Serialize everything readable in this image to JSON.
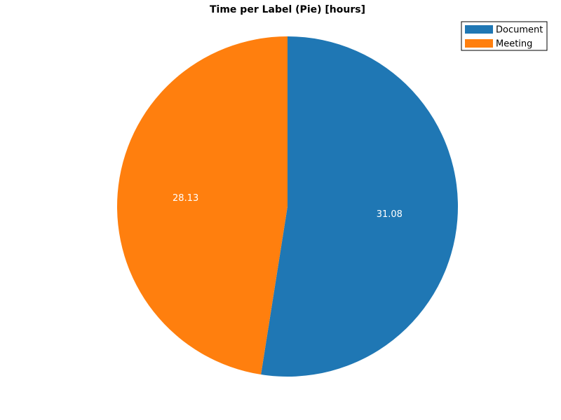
{
  "chart_data": {
    "type": "pie",
    "title": "Time per Label (Pie) [hours]",
    "slices": [
      {
        "label": "Document",
        "value": 31.08,
        "value_label": "31.08",
        "color": "#1f77b4"
      },
      {
        "label": "Meeting",
        "value": 28.13,
        "value_label": "28.13",
        "color": "#ff7f0e"
      }
    ],
    "start_direction": "12 o'clock",
    "direction": "clockwise",
    "legend_position": "top-right"
  }
}
